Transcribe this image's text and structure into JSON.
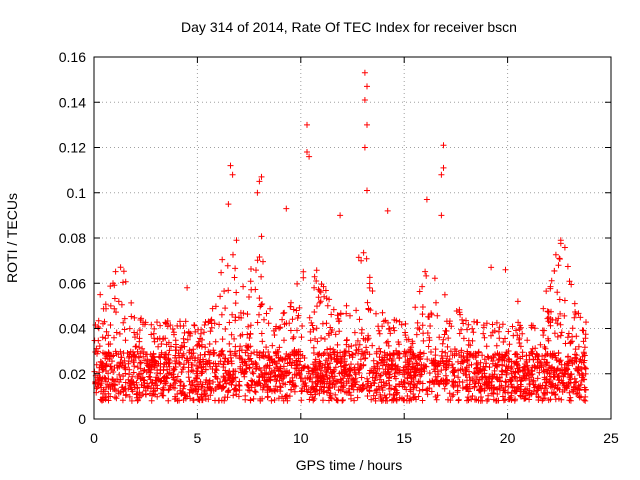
{
  "chart_data": {
    "type": "scatter",
    "title": "Day 314 of 2014, Rate Of TEC Index for receiver bscn",
    "xlabel": "GPS time / hours",
    "ylabel": "ROTI / TECUs",
    "xlim": [
      0,
      25
    ],
    "ylim": [
      0,
      0.16
    ],
    "xticks": [
      0,
      5,
      10,
      15,
      20,
      25
    ],
    "yticks": [
      0,
      0.02,
      0.04,
      0.06,
      0.08,
      0.1,
      0.12,
      0.14,
      0.16
    ],
    "xtick_labels": [
      "0",
      "5",
      "10",
      "15",
      "20",
      "25"
    ],
    "ytick_labels": [
      "0",
      "0.02",
      "0.04",
      "0.06",
      "0.08",
      "0.1",
      "0.12",
      "0.14",
      "0.16"
    ],
    "grid": true,
    "marker": "plus",
    "color": "#ff0000",
    "series": [
      {
        "name": "ROTI",
        "x_range": [
          0,
          23.8
        ],
        "typical_range": [
          0.008,
          0.035
        ],
        "peaks": [
          {
            "x": 0.3,
            "y": 0.055
          },
          {
            "x": 1.2,
            "y": 0.052
          },
          {
            "x": 4.5,
            "y": 0.058
          },
          {
            "x": 6.6,
            "y": 0.112
          },
          {
            "x": 6.7,
            "y": 0.108
          },
          {
            "x": 6.5,
            "y": 0.095
          },
          {
            "x": 8.1,
            "y": 0.107
          },
          {
            "x": 8.0,
            "y": 0.105
          },
          {
            "x": 7.9,
            "y": 0.1
          },
          {
            "x": 9.3,
            "y": 0.093
          },
          {
            "x": 10.3,
            "y": 0.13
          },
          {
            "x": 10.3,
            "y": 0.118
          },
          {
            "x": 10.4,
            "y": 0.116
          },
          {
            "x": 11.9,
            "y": 0.09
          },
          {
            "x": 13.1,
            "y": 0.153
          },
          {
            "x": 13.2,
            "y": 0.147
          },
          {
            "x": 13.1,
            "y": 0.141
          },
          {
            "x": 13.2,
            "y": 0.13
          },
          {
            "x": 13.1,
            "y": 0.12
          },
          {
            "x": 13.2,
            "y": 0.101
          },
          {
            "x": 14.2,
            "y": 0.092
          },
          {
            "x": 16.1,
            "y": 0.097
          },
          {
            "x": 16.9,
            "y": 0.121
          },
          {
            "x": 16.9,
            "y": 0.111
          },
          {
            "x": 16.8,
            "y": 0.108
          },
          {
            "x": 16.8,
            "y": 0.09
          },
          {
            "x": 19.2,
            "y": 0.067
          },
          {
            "x": 19.9,
            "y": 0.066
          },
          {
            "x": 20.5,
            "y": 0.052
          },
          {
            "x": 22.5,
            "y": 0.071
          },
          {
            "x": 22.4,
            "y": 0.056
          }
        ]
      }
    ]
  }
}
